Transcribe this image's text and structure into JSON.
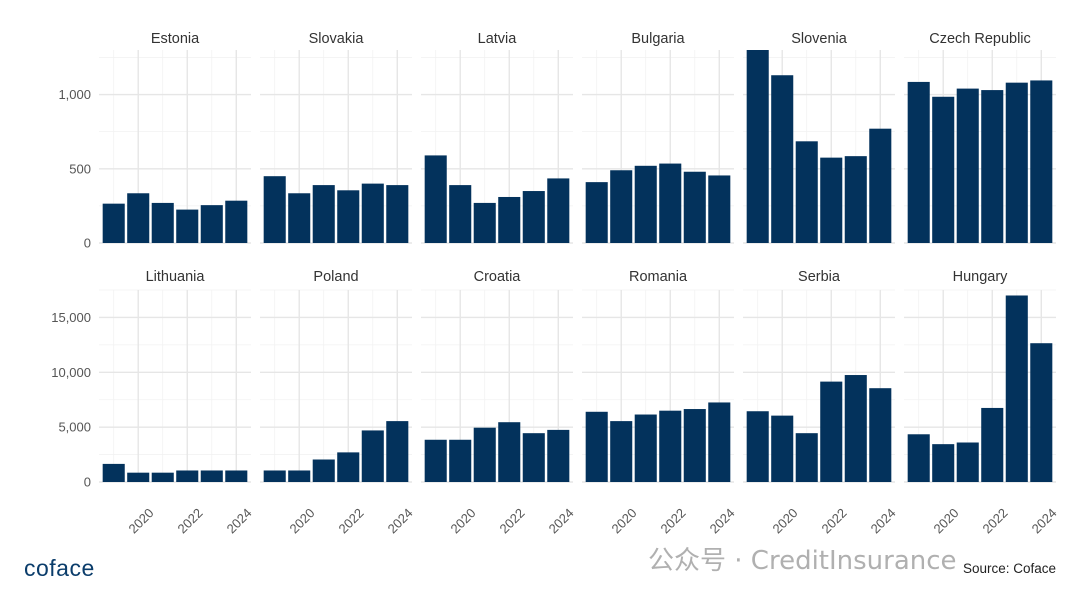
{
  "chart_data": {
    "type": "bar",
    "layout": "small multiples, 2 rows x 6 columns, free y scale per row",
    "x_years": [
      2019,
      2020,
      2021,
      2022,
      2023,
      2024
    ],
    "x_tick_labels": [
      "2020",
      "2022",
      "2024"
    ],
    "colors": {
      "bar": "#03325c",
      "grid": "#e6e6e6",
      "background": "#ffffff"
    },
    "grid": true,
    "rows": [
      {
        "ylim": [
          0,
          1300
        ],
        "y_ticks": [
          0,
          500,
          1000
        ],
        "y_tick_labels": [
          "0",
          "500",
          "1,000"
        ],
        "panels": [
          {
            "title": "Estonia",
            "values": [
              265,
              335,
              270,
              225,
              255,
              285
            ]
          },
          {
            "title": "Slovakia",
            "values": [
              450,
              335,
              390,
              355,
              400,
              390
            ]
          },
          {
            "title": "Latvia",
            "values": [
              590,
              390,
              270,
              310,
              350,
              435
            ]
          },
          {
            "title": "Bulgaria",
            "values": [
              410,
              490,
              520,
              535,
              480,
              455
            ]
          },
          {
            "title": "Slovenia",
            "values": [
              1300,
              1130,
              685,
              575,
              585,
              770
            ]
          },
          {
            "title": "Czech Republic",
            "values": [
              1085,
              985,
              1040,
              1030,
              1080,
              1095
            ]
          }
        ]
      },
      {
        "ylim": [
          0,
          17500
        ],
        "y_ticks": [
          0,
          5000,
          10000,
          15000
        ],
        "y_tick_labels": [
          "0",
          "5,000",
          "10,000",
          "15,000"
        ],
        "panels": [
          {
            "title": "Lithuania",
            "values": [
              1650,
              850,
              850,
              1050,
              1050,
              1050
            ]
          },
          {
            "title": "Poland",
            "values": [
              1050,
              1050,
              2050,
              2700,
              4700,
              5550
            ]
          },
          {
            "title": "Croatia",
            "values": [
              3850,
              3850,
              4950,
              5450,
              4450,
              4750
            ]
          },
          {
            "title": "Romania",
            "values": [
              6400,
              5550,
              6150,
              6500,
              6650,
              7250
            ]
          },
          {
            "title": "Serbia",
            "values": [
              6450,
              6050,
              4450,
              9150,
              9750,
              8550
            ]
          },
          {
            "title": "Hungary",
            "values": [
              4350,
              3450,
              3600,
              6750,
              17000,
              12650
            ]
          }
        ]
      }
    ]
  },
  "footer": {
    "logo_text": "coface",
    "watermark": "公众号 · CreditInsurance",
    "source": "Source: Coface"
  }
}
